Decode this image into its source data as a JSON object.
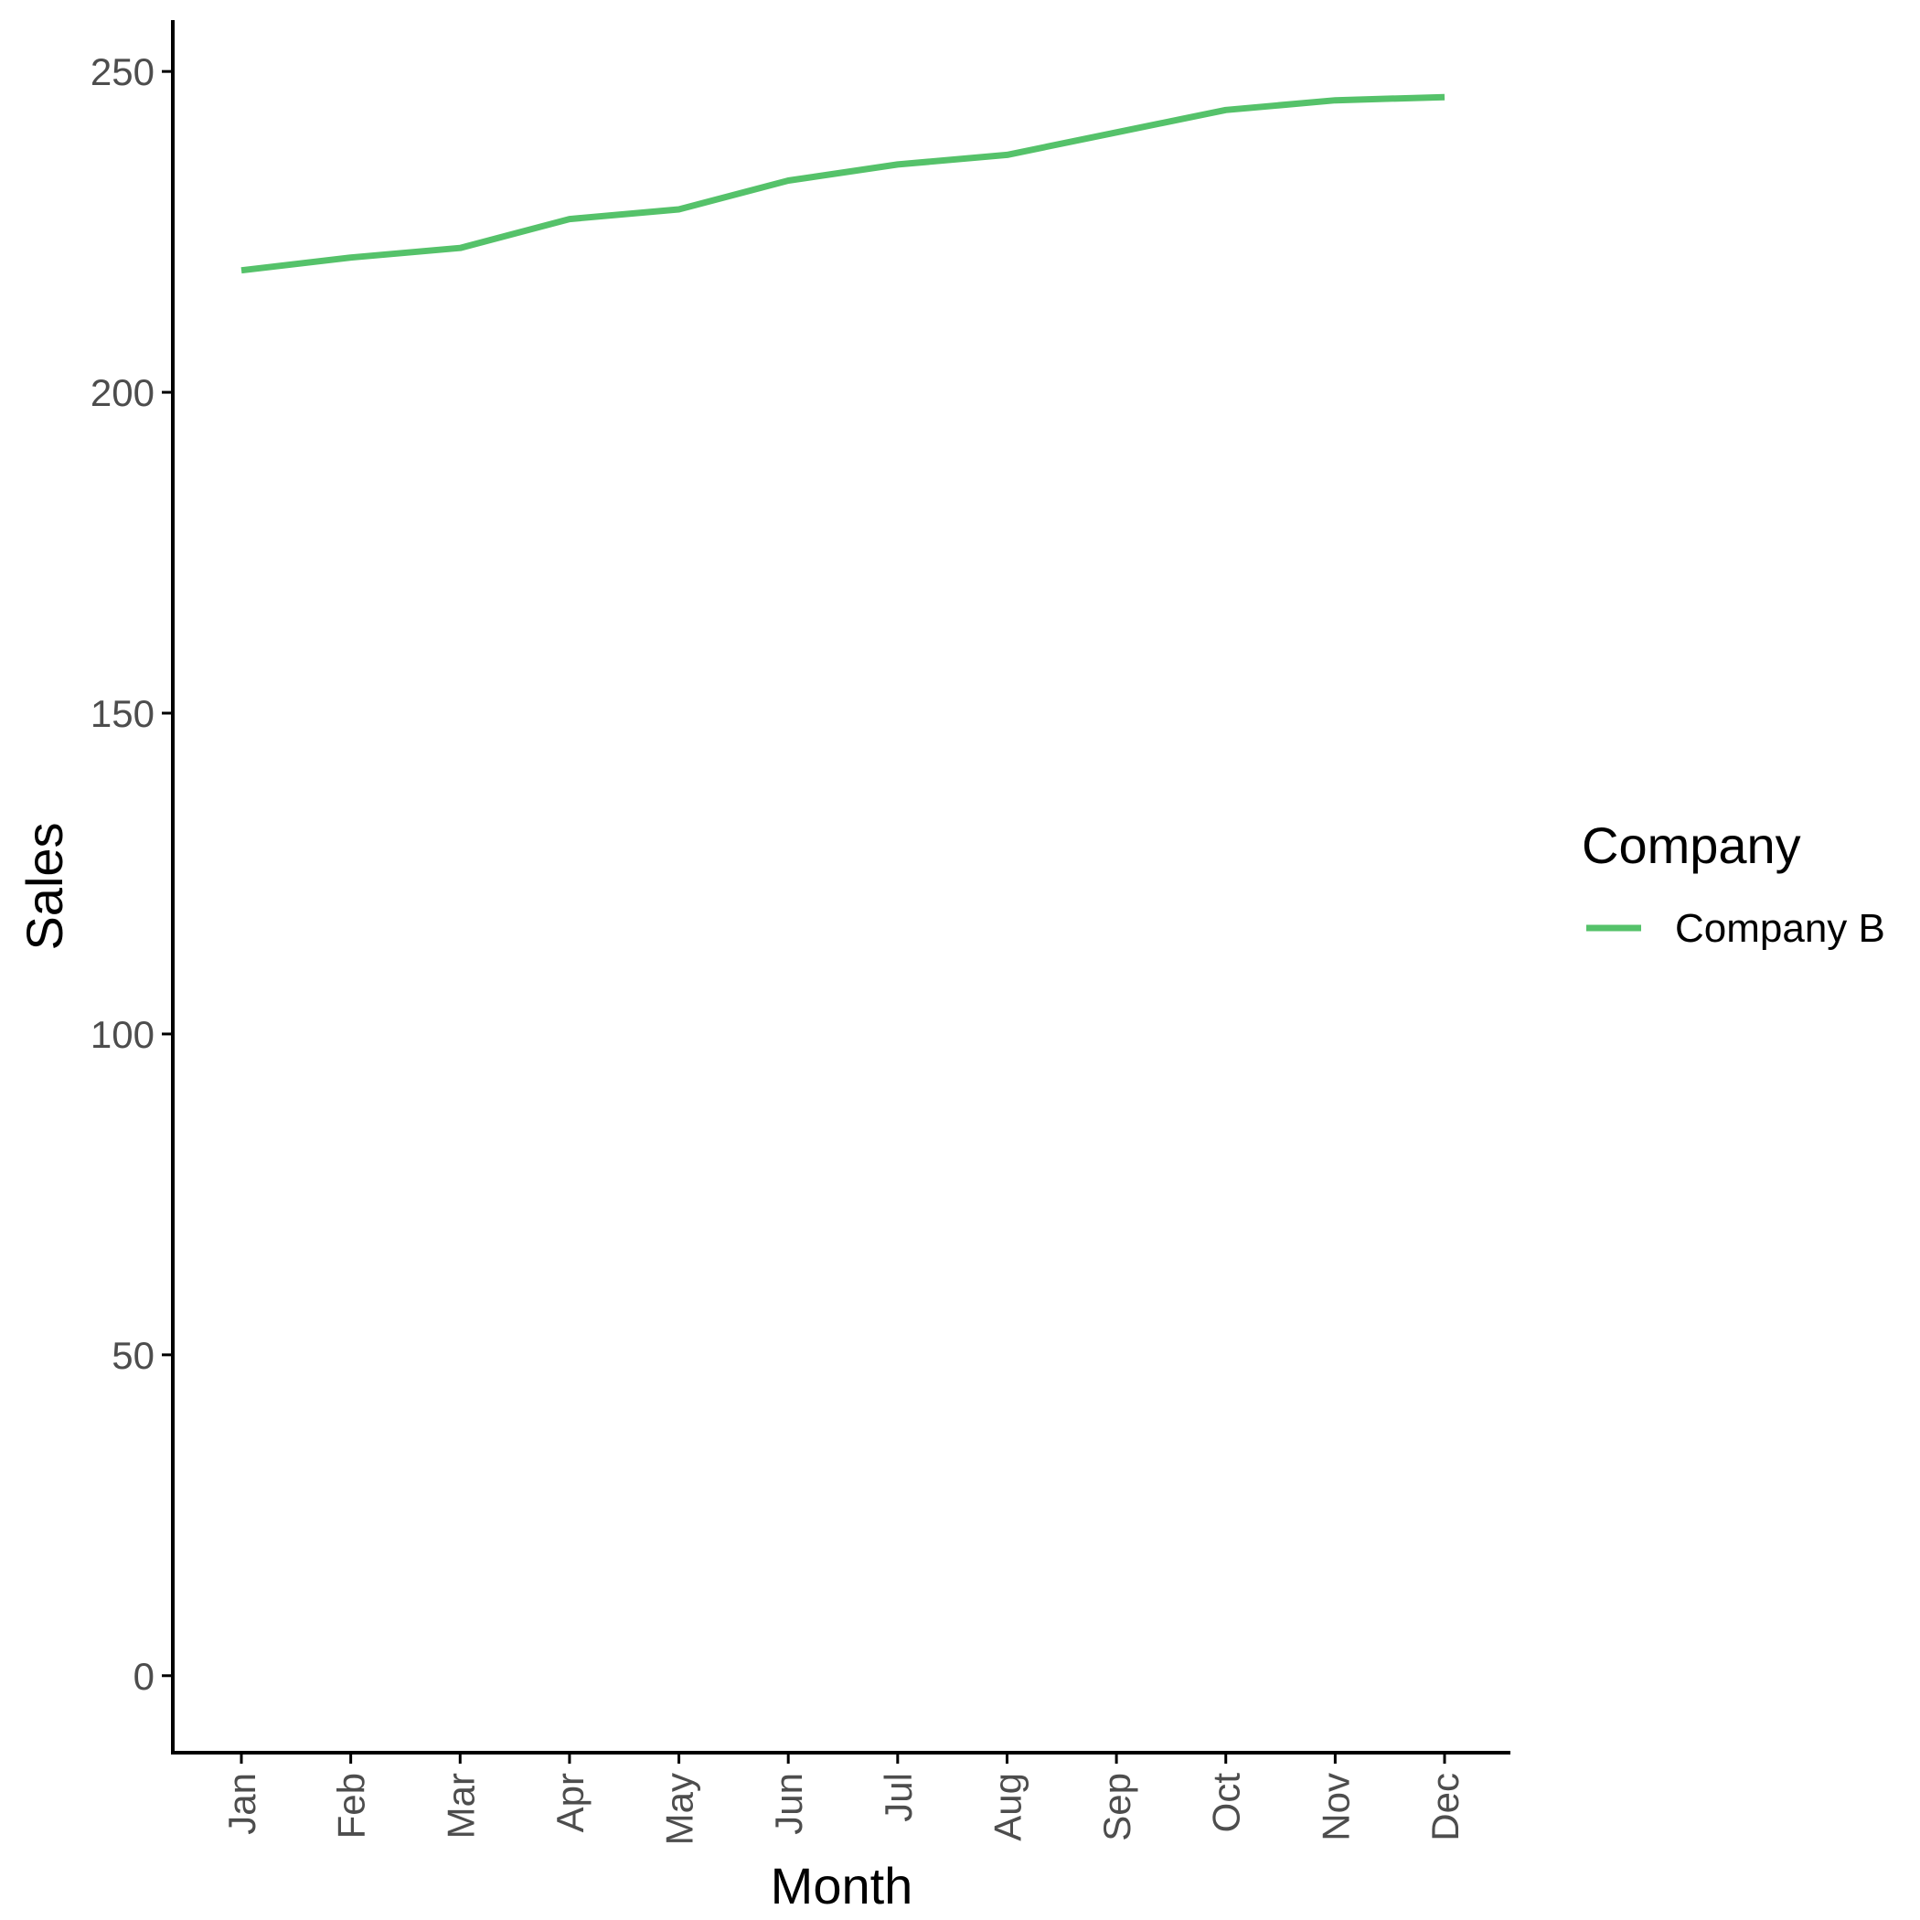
{
  "chart_data": {
    "type": "line",
    "title": "",
    "xlabel": "Month",
    "ylabel": "Sales",
    "categories": [
      "Jan",
      "Feb",
      "Mar",
      "Apr",
      "May",
      "Jun",
      "Jul",
      "Aug",
      "Sep",
      "Oct",
      "Nov",
      "Dec"
    ],
    "yticks": [
      0,
      50,
      100,
      150,
      200,
      250
    ],
    "ylim": [
      -12,
      258
    ],
    "grid": false,
    "legend": {
      "title": "Company",
      "placement": "right"
    },
    "series": [
      {
        "name": "Company B",
        "color": "#55C26A",
        "values": [
          219,
          221,
          222.5,
          227,
          228.5,
          233,
          235.5,
          237,
          240.5,
          244,
          245.5,
          246
        ]
      }
    ]
  }
}
